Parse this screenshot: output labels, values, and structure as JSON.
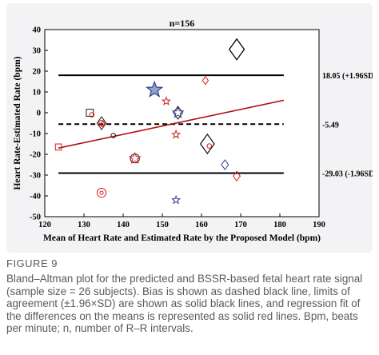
{
  "chart_data": {
    "type": "scatter",
    "title": "n=156",
    "xlabel": "Mean of Heart Rate and Estimated Rate by the Proposed Model (bpm)",
    "ylabel": "Heart Rate-Estimated Rate (bpm)",
    "xlim": [
      120,
      190
    ],
    "ylim": [
      -50,
      40
    ],
    "x_ticks": [
      "120",
      "130",
      "140",
      "150",
      "160",
      "170",
      "180",
      "190"
    ],
    "y_ticks": [
      "-50",
      "-40",
      "-30",
      "-20",
      "-10",
      "0",
      "10",
      "20",
      "30",
      "40"
    ],
    "grid": false,
    "reference_lines": [
      {
        "label": "18.05 (+1.96SD)",
        "y": 18.05,
        "style": "solid",
        "color": "#000000"
      },
      {
        "label": "-5.49",
        "y": -5.49,
        "style": "dashed",
        "color": "#000000"
      },
      {
        "label": "-29.03 (-1.96SD)",
        "y": -29.03,
        "style": "solid",
        "color": "#000000"
      }
    ],
    "line_x_range": [
      123.5,
      181
    ],
    "regression_line": {
      "x": [
        123.5,
        181
      ],
      "y": [
        -17.0,
        6.0
      ],
      "color": "#b01010"
    },
    "points": [
      {
        "x": 169,
        "y": 30.5,
        "marker": "diamond",
        "color": "#000000",
        "size": 13
      },
      {
        "x": 148,
        "y": 11,
        "marker": "star",
        "color": "#2f3d8f",
        "size": 10
      },
      {
        "x": 161,
        "y": 15.5,
        "marker": "diamond",
        "color": "#d42020",
        "size": 5
      },
      {
        "x": 151,
        "y": 5.5,
        "marker": "star",
        "color": "#d42020",
        "size": 5
      },
      {
        "x": 154,
        "y": 0,
        "marker": "diamond",
        "color": "#1a1a1a",
        "size": 8
      },
      {
        "x": 154,
        "y": 0,
        "marker": "star",
        "color": "#2f3d8f",
        "size": 7
      },
      {
        "x": 131.5,
        "y": 0,
        "marker": "square",
        "color": "#1a1a1a",
        "size": 8
      },
      {
        "x": 132,
        "y": -1,
        "marker": "circle",
        "color": "#d42020",
        "size": 4
      },
      {
        "x": 134.5,
        "y": -5,
        "marker": "diamond",
        "color": "#1a1a1a",
        "size": 8
      },
      {
        "x": 134.5,
        "y": -5,
        "marker": "circle",
        "color": "#d42020",
        "size": 5
      },
      {
        "x": 134.8,
        "y": -5.5,
        "marker": "diamond",
        "color": "#d42020",
        "size": 4
      },
      {
        "x": 137.5,
        "y": -11,
        "marker": "circle",
        "color": "#1a1a1a",
        "size": 4
      },
      {
        "x": 153.5,
        "y": -10.5,
        "marker": "star",
        "color": "#d42020",
        "size": 5
      },
      {
        "x": 123.5,
        "y": -16.5,
        "marker": "square",
        "color": "#d42020",
        "size": 7
      },
      {
        "x": 143,
        "y": -22,
        "marker": "circle",
        "color": "#1a1a1a",
        "size": 8
      },
      {
        "x": 143,
        "y": -22,
        "marker": "star",
        "color": "#d42020",
        "size": 7
      },
      {
        "x": 161.5,
        "y": -15,
        "marker": "diamond",
        "color": "#1a1a1a",
        "size": 12
      },
      {
        "x": 162,
        "y": -16,
        "marker": "circle",
        "color": "#d42020",
        "size": 4
      },
      {
        "x": 166,
        "y": -25,
        "marker": "diamond",
        "color": "#2f3d8f",
        "size": 6
      },
      {
        "x": 169,
        "y": -30.5,
        "marker": "diamond",
        "color": "#d42020",
        "size": 6
      },
      {
        "x": 134.5,
        "y": -38.5,
        "marker": "circle",
        "color": "#d42020",
        "size": 8
      },
      {
        "x": 134.5,
        "y": -38.5,
        "marker": "circle",
        "color": "#d42020",
        "size": 3
      },
      {
        "x": 153.5,
        "y": -42,
        "marker": "star",
        "color": "#2f3d8f",
        "size": 5
      }
    ]
  },
  "caption": {
    "figure_label": "FIGURE 9",
    "text": "Bland–Altman plot for the predicted and BSSR-based fetal heart rate signal (sample size = 26 subjects). Bias is shown as dashed black line, limits of agreement (±1.96×SD) are shown as solid black lines, and regression fit of the differences on the means is represented as solid red lines. Bpm, beats per minute; n, number of R–R intervals."
  }
}
